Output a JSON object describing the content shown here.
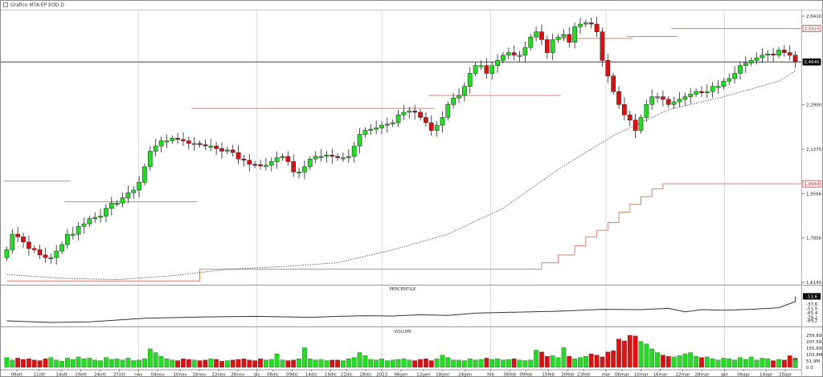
{
  "window": {
    "title": "Grafico MTA:EP EOD D"
  },
  "panels": {
    "percentile_title": "PERCENTILE",
    "volume_title": "VOLUMI"
  },
  "colors": {
    "up": "#22dd22",
    "down": "#dd1111",
    "channel": "#d9826a",
    "price_line": "#444444",
    "moving_average": "#444444",
    "grid": "#dcdcdc"
  },
  "chart_data": [
    {
      "type": "candlestick",
      "panel": "price",
      "y_ticks": [
        "2,6410",
        "2,4640",
        "2,2990",
        "2,1275",
        "1,9566",
        "1,7856",
        "1,6145"
      ],
      "ylim": [
        1.6145,
        2.641
      ],
      "price_labels": [
        {
          "text": "2,5925",
          "value": 2.5925,
          "color": "#dd1111",
          "box": false
        },
        {
          "text": "2,4640",
          "value": 2.464,
          "color": "#000000",
          "box": true
        },
        {
          "text": "1,9944",
          "value": 1.9944,
          "color": "#dd1111",
          "box": false
        }
      ],
      "upper_channel_value": 2.5925,
      "upper_channel_segments": [
        {
          "from": 0,
          "to": 11,
          "value": 2.005
        },
        {
          "from": 11,
          "to": 34,
          "value": 1.925
        },
        {
          "from": 34,
          "to": 77,
          "value": 2.285
        },
        {
          "from": 77,
          "to": 100,
          "value": 2.335
        },
        {
          "from": 100,
          "to": 113,
          "value": 2.555
        },
        {
          "from": 113,
          "to": 121,
          "value": 2.562
        },
        {
          "from": 121,
          "to": 148,
          "value": 2.5925
        }
      ],
      "lower_channel_points": [
        [
          0,
          1.62
        ],
        [
          34,
          1.62
        ],
        [
          35,
          1.665
        ],
        [
          90,
          1.665
        ],
        [
          91,
          1.665
        ],
        [
          96,
          1.665
        ],
        [
          97,
          1.69
        ],
        [
          99,
          1.69
        ],
        [
          100,
          1.72
        ],
        [
          102,
          1.72
        ],
        [
          103,
          1.755
        ],
        [
          104,
          1.755
        ],
        [
          105,
          1.79
        ],
        [
          106,
          1.79
        ],
        [
          107,
          1.815
        ],
        [
          108,
          1.815
        ],
        [
          109,
          1.845
        ],
        [
          110,
          1.845
        ],
        [
          111,
          1.885
        ],
        [
          112,
          1.885
        ],
        [
          113,
          1.915
        ],
        [
          114,
          1.915
        ],
        [
          115,
          1.945
        ],
        [
          116,
          1.945
        ],
        [
          117,
          1.975
        ],
        [
          118,
          1.975
        ],
        [
          119,
          1.9944
        ],
        [
          148,
          1.9944
        ]
      ],
      "moving_average_points": [
        [
          0,
          1.645
        ],
        [
          10,
          1.63
        ],
        [
          20,
          1.625
        ],
        [
          30,
          1.64
        ],
        [
          40,
          1.665
        ],
        [
          50,
          1.675
        ],
        [
          60,
          1.69
        ],
        [
          70,
          1.74
        ],
        [
          80,
          1.8
        ],
        [
          90,
          1.9
        ],
        [
          100,
          2.05
        ],
        [
          110,
          2.18
        ],
        [
          120,
          2.28
        ],
        [
          130,
          2.33
        ],
        [
          140,
          2.39
        ],
        [
          147,
          2.43
        ]
      ],
      "closes": [
        1.74,
        1.8,
        1.79,
        1.77,
        1.745,
        1.74,
        1.72,
        1.71,
        1.71,
        1.735,
        1.76,
        1.8,
        1.8,
        1.83,
        1.84,
        1.86,
        1.865,
        1.87,
        1.9,
        1.92,
        1.92,
        1.94,
        1.96,
        1.97,
        2.0,
        2.06,
        2.12,
        2.14,
        2.16,
        2.16,
        2.17,
        2.165,
        2.16,
        2.15,
        2.15,
        2.145,
        2.14,
        2.14,
        2.13,
        2.12,
        2.125,
        2.115,
        2.09,
        2.085,
        2.07,
        2.068,
        2.066,
        2.066,
        2.08,
        2.095,
        2.1,
        2.08,
        2.04,
        2.04,
        2.06,
        2.09,
        2.1,
        2.1,
        2.105,
        2.1,
        2.095,
        2.095,
        2.1,
        2.14,
        2.185,
        2.2,
        2.205,
        2.21,
        2.22,
        2.225,
        2.23,
        2.26,
        2.27,
        2.275,
        2.27,
        2.25,
        2.23,
        2.2,
        2.22,
        2.25,
        2.3,
        2.325,
        2.335,
        2.37,
        2.42,
        2.45,
        2.45,
        2.42,
        2.45,
        2.47,
        2.49,
        2.5,
        2.49,
        2.49,
        2.52,
        2.56,
        2.58,
        2.55,
        2.5,
        2.55,
        2.56,
        2.57,
        2.54,
        2.6,
        2.61,
        2.615,
        2.61,
        2.58,
        2.47,
        2.41,
        2.35,
        2.3,
        2.26,
        2.24,
        2.2,
        2.25,
        2.3,
        2.33,
        2.33,
        2.32,
        2.3,
        2.31,
        2.32,
        2.33,
        2.34,
        2.35,
        2.345,
        2.35,
        2.37,
        2.37,
        2.39,
        2.4,
        2.42,
        2.45,
        2.46,
        2.47,
        2.48,
        2.49,
        2.495,
        2.49,
        2.51,
        2.5,
        2.49,
        2.465
      ]
    },
    {
      "type": "line",
      "panel": "percentile",
      "y_ticks": [
        "-13,6",
        "-37,6",
        "-51,5",
        "-65,4",
        "-79,2",
        "-89,2"
      ],
      "ylim": [
        -100,
        0
      ],
      "current_label": "-13,6",
      "points": [
        [
          0,
          -90
        ],
        [
          8,
          -95
        ],
        [
          15,
          -93
        ],
        [
          25,
          -82
        ],
        [
          35,
          -78
        ],
        [
          45,
          -76
        ],
        [
          55,
          -79
        ],
        [
          60,
          -76
        ],
        [
          65,
          -74
        ],
        [
          70,
          -75
        ],
        [
          75,
          -71
        ],
        [
          80,
          -73
        ],
        [
          85,
          -66
        ],
        [
          92,
          -63
        ],
        [
          100,
          -60
        ],
        [
          108,
          -54
        ],
        [
          115,
          -55
        ],
        [
          120,
          -51
        ],
        [
          123,
          -62
        ],
        [
          126,
          -55
        ],
        [
          130,
          -57
        ],
        [
          135,
          -54
        ],
        [
          140,
          -49
        ],
        [
          144,
          -30
        ],
        [
          146,
          -17
        ],
        [
          148,
          -13.6
        ]
      ]
    },
    {
      "type": "bar",
      "panel": "volume",
      "y_ticks": [
        "259.89M",
        "207.59M",
        "155.69M",
        "103.8M",
        "51.9M",
        "0.0"
      ],
      "ylim": [
        0,
        259.89
      ],
      "values": [
        80,
        60,
        75,
        65,
        70,
        60,
        55,
        70,
        80,
        60,
        50,
        75,
        65,
        85,
        70,
        75,
        60,
        55,
        80,
        65,
        70,
        60,
        75,
        55,
        60,
        70,
        150,
        120,
        90,
        70,
        60,
        55,
        70,
        65,
        60,
        55,
        60,
        70,
        65,
        50,
        55,
        60,
        65,
        70,
        60,
        55,
        70,
        60,
        65,
        110,
        60,
        55,
        60,
        70,
        160,
        70,
        60,
        65,
        55,
        60,
        60,
        55,
        70,
        80,
        120,
        95,
        65,
        60,
        70,
        55,
        60,
        65,
        70,
        60,
        55,
        65,
        70,
        55,
        70,
        100,
        80,
        60,
        60,
        55,
        70,
        60,
        65,
        75,
        65,
        70,
        60,
        65,
        70,
        60,
        55,
        60,
        140,
        125,
        90,
        95,
        80,
        160,
        90,
        70,
        80,
        90,
        110,
        100,
        85,
        125,
        135,
        230,
        215,
        260,
        255,
        210,
        190,
        150,
        120,
        100,
        90,
        85,
        95,
        110,
        120,
        90,
        80,
        85,
        70,
        60,
        75,
        70,
        60,
        80,
        65,
        85,
        60,
        75,
        70,
        55,
        65,
        60,
        95,
        75,
        70,
        65,
        60,
        50
      ]
    }
  ],
  "x_axis_labels": [
    {
      "text": "06ott",
      "i": 4
    },
    {
      "text": "11ott",
      "i": 11
    },
    {
      "text": "14ott",
      "i": 18
    },
    {
      "text": "19ott",
      "i": 24
    },
    {
      "text": "24ott",
      "i": 30
    },
    {
      "text": "27ott",
      "i": 36
    },
    {
      "text": "nov",
      "i": 42
    },
    {
      "text": "04nov",
      "i": 48
    },
    {
      "text": "10nov",
      "i": 55
    },
    {
      "text": "16nov",
      "i": 61
    },
    {
      "text": "22nov",
      "i": 67
    },
    {
      "text": "28nov",
      "i": 73
    },
    {
      "text": "dic",
      "i": 79
    },
    {
      "text": "06dic",
      "i": 84
    },
    {
      "text": "09dic",
      "i": 90
    },
    {
      "text": "14dic",
      "i": 96
    },
    {
      "text": "19dic",
      "i": 102
    },
    {
      "text": "22dic",
      "i": 107
    },
    {
      "text": "28dic",
      "i": 113
    },
    {
      "text": "2023",
      "i": 118
    },
    {
      "text": "06gen",
      "i": 124
    },
    {
      "text": "12gen",
      "i": 131
    },
    {
      "text": "18gen",
      "i": 137
    },
    {
      "text": "24gen",
      "i": 144
    },
    {
      "text": "feb",
      "i": 152
    },
    {
      "text": "06feb",
      "i": 158
    },
    {
      "text": "09feb",
      "i": 163
    },
    {
      "text": "15feb",
      "i": 170
    },
    {
      "text": "20feb",
      "i": 176
    },
    {
      "text": "23feb",
      "i": 181
    },
    {
      "text": "mar",
      "i": 188
    },
    {
      "text": "06mar",
      "i": 193
    },
    {
      "text": "10mar",
      "i": 199
    },
    {
      "text": "16mar",
      "i": 205
    },
    {
      "text": "22mar",
      "i": 212
    },
    {
      "text": "28mar",
      "i": 218
    },
    {
      "text": "apr",
      "i": 225
    },
    {
      "text": "06apr",
      "i": 231
    },
    {
      "text": "14apr",
      "i": 238
    },
    {
      "text": "20apr",
      "i": 244
    }
  ]
}
